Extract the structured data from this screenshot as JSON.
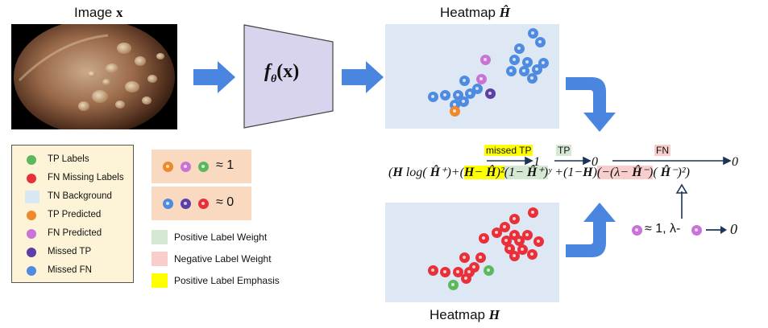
{
  "titles": {
    "image_prefix": "Image",
    "image_var": "x",
    "heatmap_pred_prefix": "Heatmap",
    "heatmap_pred_var": "Ĥ",
    "heatmap_gt_prefix": "Heatmap",
    "heatmap_gt_var": "H"
  },
  "network": {
    "f": "f",
    "theta": "θ",
    "arg": "(x)"
  },
  "legend": {
    "items": [
      {
        "label": "TP Labels",
        "color": "#5cb85c"
      },
      {
        "label": "FN Missing Labels",
        "color": "#e8303a"
      },
      {
        "label": "TN Background",
        "color": "#d9e6f4"
      },
      {
        "label": "TP Predicted",
        "color": "#f0882c"
      },
      {
        "label": "FN Predicted",
        "color": "#c774d6"
      },
      {
        "label": "Missed TP",
        "color": "#5b3ea6"
      },
      {
        "label": "Missed FN",
        "color": "#4f8be0"
      }
    ]
  },
  "confidence": {
    "approx_one": "≈ 1",
    "approx_zero": "≈ 0",
    "one_colors": [
      "#f0882c",
      "#c774d6",
      "#5cb85c"
    ],
    "zero_colors": [
      "#4f8be0",
      "#5b3ea6",
      "#e8303a"
    ]
  },
  "weights": [
    {
      "label": "Positive Label Weight",
      "color": "#d5e8d4"
    },
    {
      "label": "Negative Label Weight",
      "color": "#f8cecc"
    },
    {
      "label": "Positive Label Emphasis",
      "color": "#ffff00"
    }
  ],
  "equation": {
    "tag_missed_tp": "missed TP",
    "tag_tp": "TP",
    "tag_fn": "FN",
    "limit_one": "1",
    "limit_zero_a": "0",
    "limit_zero_b": "0",
    "limit_zero_c": "0",
    "t1": "(",
    "t1b": "H",
    "t2": " log( ",
    "t2b": "Ĥ",
    "t3": "⁺)+(",
    "y_a": "H",
    "y_b": "− ",
    "y_c": "Ĥ",
    "y_d": ")²",
    "t4": ")",
    "g_a": "(1− ",
    "g_b": "Ĥ",
    "g_c": "⁺)",
    "t5": "ʸ +(1−",
    "t5b": "H",
    "t6": ")",
    "r_a": "(−(λ− ",
    "r_b": "Ĥ",
    "r_c": "⁻)",
    "t7": "( ",
    "t7b": "Ĥ",
    "t8": "⁻)²)",
    "note_a": "≈ 1, λ-",
    "note_zero": "0"
  },
  "colors": {
    "arrow_blue": "#4a86e0",
    "network_fill": "#d8d4ee",
    "heatmap_bg": "#dde8f4"
  }
}
